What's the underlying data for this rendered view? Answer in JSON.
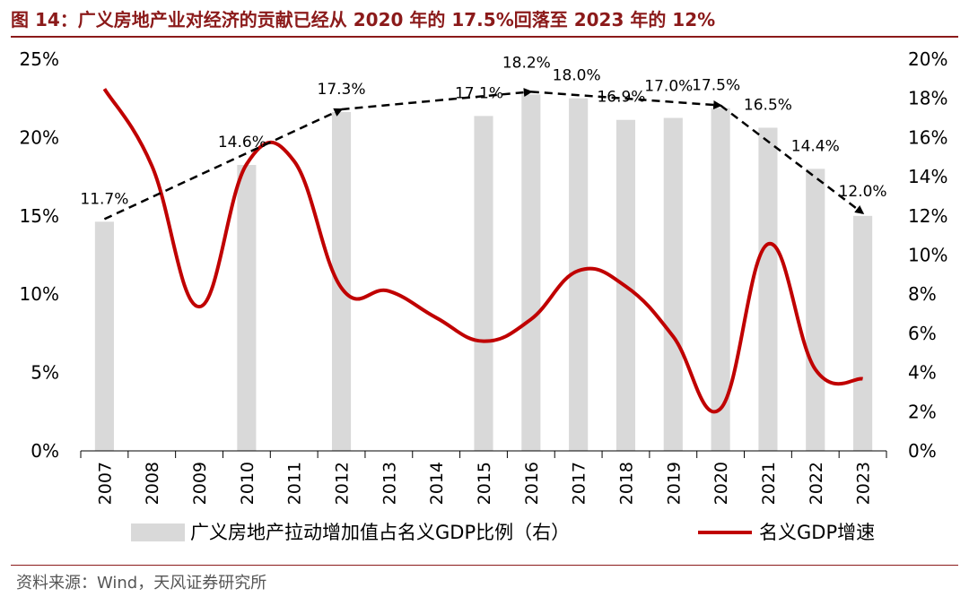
{
  "title": "图 14：广义房地产业对经济的贡献已经从 2020 年的 17.5%回落至 2023 年的 12%",
  "source": "资料来源：Wind，天风证券研究所",
  "colors": {
    "bar": "#d9d9d9",
    "line": "#c00000",
    "arrow": "#000000",
    "title": "#8b1a1a"
  },
  "chart_data": {
    "type": "bar",
    "categories": [
      "2007",
      "2008",
      "2009",
      "2010",
      "2011",
      "2012",
      "2013",
      "2014",
      "2015",
      "2016",
      "2017",
      "2018",
      "2019",
      "2020",
      "2021",
      "2022",
      "2023"
    ],
    "left_axis": {
      "ylim": [
        0,
        25
      ],
      "ticks": [
        "0%",
        "5%",
        "10%",
        "15%",
        "20%",
        "25%"
      ]
    },
    "right_axis": {
      "ylim": [
        0,
        20
      ],
      "ticks": [
        "0%",
        "2%",
        "4%",
        "6%",
        "8%",
        "10%",
        "12%",
        "14%",
        "16%",
        "18%",
        "20%"
      ]
    },
    "series": [
      {
        "name": "广义房地产拉动增加值占名义GDP比例（右）",
        "type": "bar",
        "axis": "right",
        "values": [
          11.7,
          null,
          null,
          14.6,
          null,
          17.3,
          null,
          null,
          17.1,
          18.2,
          18.0,
          16.9,
          17.0,
          17.5,
          16.5,
          14.4,
          12.0
        ],
        "labels": [
          "11.7%",
          "",
          "",
          "14.6%",
          "",
          "17.3%",
          "",
          "",
          "17.1%",
          "18.2%",
          "18.0%",
          "16.9%",
          "17.0%",
          "17.5%",
          "16.5%",
          "14.4%",
          "12.0%"
        ]
      },
      {
        "name": "名义GDP增速",
        "type": "line",
        "axis": "left",
        "values": [
          23.1,
          18.2,
          9.2,
          18.3,
          18.5,
          10.4,
          10.2,
          8.5,
          7.0,
          8.4,
          11.5,
          10.5,
          7.3,
          2.7,
          13.2,
          5.2,
          4.6
        ]
      }
    ],
    "trend_arrows": [
      {
        "from": "2007",
        "to": "2012"
      },
      {
        "from": "2012",
        "to": "2016"
      },
      {
        "from": "2016",
        "to": "2020"
      },
      {
        "from": "2020",
        "to": "2023"
      }
    ],
    "legend_position": "bottom"
  }
}
